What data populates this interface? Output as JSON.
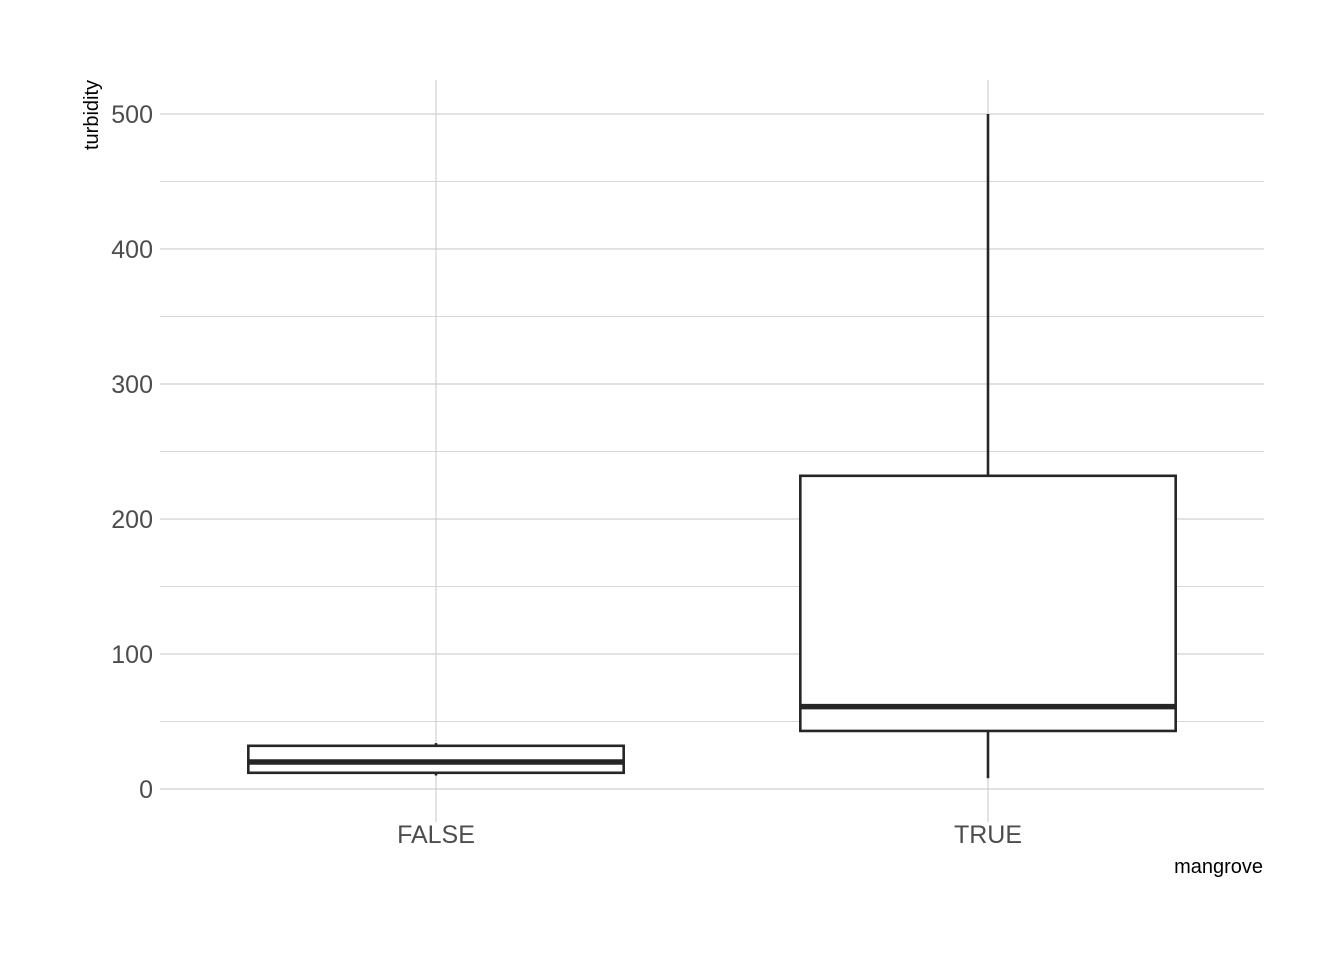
{
  "chart_data": {
    "type": "boxplot",
    "xlabel": "mangrove",
    "ylabel": "turbidity",
    "categories": [
      "FALSE",
      "TRUE"
    ],
    "boxes": [
      {
        "category": "FALSE",
        "min": 10,
        "q1": 12,
        "median": 20,
        "q3": 32,
        "max": 34
      },
      {
        "category": "TRUE",
        "min": 8,
        "q1": 43,
        "median": 61,
        "q3": 232,
        "max": 500
      }
    ],
    "ylim": [
      -25,
      525
    ],
    "yticks": [
      0,
      100,
      200,
      300,
      400,
      500
    ],
    "yminor": [
      50,
      150,
      250,
      350,
      450
    ],
    "grid": true,
    "legend": "none",
    "colors": {
      "box_outline": "#262626",
      "box_fill": "#ffffff",
      "grid": "#d0d0d0"
    }
  }
}
